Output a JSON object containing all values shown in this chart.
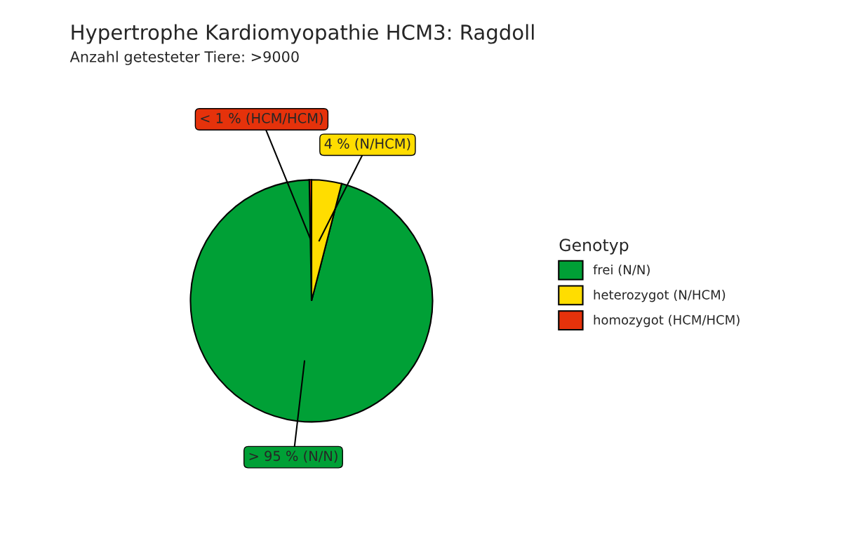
{
  "chart_data": {
    "type": "pie",
    "title": "Hypertrophe Kardiomyopathie HCM3: Ragdoll",
    "subtitle": "Anzahl getesteter Tiere: >9000",
    "legend_title": "Genotyp",
    "categories": [
      "frei (N/N)",
      "heterozygot (N/HCM)",
      "homozygot (HCM/HCM)"
    ],
    "values": [
      95.7,
      4.0,
      0.3
    ],
    "colors": [
      "#00a036",
      "#ffdd00",
      "#e5320b"
    ],
    "value_labels": [
      "> 95 % (N/N)",
      "4 % (N/HCM)",
      "< 1 % (HCM/HCM)"
    ],
    "legend": "right"
  }
}
